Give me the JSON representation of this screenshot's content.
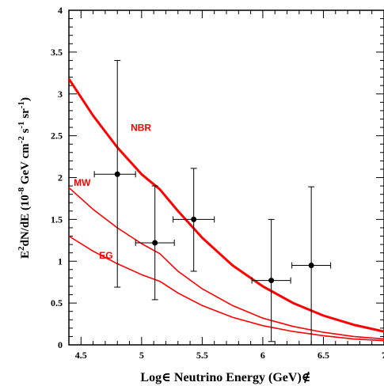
{
  "chart_data": {
    "type": "line",
    "xlabel": "Log∈ Neutrino Energy (GeV)∉",
    "ylabel": {
      "parts": [
        "E",
        "2",
        "dN/dE (10",
        "-8",
        " GeV cm",
        "-2",
        " s",
        "-1",
        " sr",
        "-1",
        ")"
      ]
    },
    "xlim": [
      4.4,
      7.0
    ],
    "ylim": [
      0,
      4
    ],
    "x_ticks": [
      "4.5",
      "5",
      "5.5",
      "6",
      "6.5",
      "7"
    ],
    "x_tick_values": [
      4.5,
      5.0,
      5.5,
      6.0,
      6.5,
      7.0
    ],
    "y_ticks": [
      "0",
      "0.5",
      "1",
      "1.5",
      "2",
      "2.5",
      "3",
      "3.5",
      "4"
    ],
    "y_tick_values": [
      0,
      0.5,
      1,
      1.5,
      2,
      2.5,
      3,
      3.5,
      4
    ],
    "grid": false,
    "series": [
      {
        "name": "NBR",
        "color": "#ff0000",
        "thick": true,
        "x": [
          4.4,
          4.6,
          4.8,
          5.0,
          5.15,
          5.3,
          5.5,
          5.75,
          6.0,
          6.25,
          6.5,
          6.75,
          7.0
        ],
        "y": [
          3.18,
          2.74,
          2.36,
          2.04,
          1.86,
          1.6,
          1.28,
          0.95,
          0.7,
          0.5,
          0.35,
          0.24,
          0.16
        ]
      },
      {
        "name": "MW",
        "color": "#ff0000",
        "thick": false,
        "x": [
          4.4,
          4.6,
          4.8,
          5.0,
          5.15,
          5.3,
          5.5,
          5.75,
          6.0,
          6.25,
          6.5,
          6.75,
          7.0
        ],
        "y": [
          1.88,
          1.62,
          1.4,
          1.21,
          1.09,
          0.88,
          0.67,
          0.47,
          0.32,
          0.22,
          0.15,
          0.1,
          0.07
        ]
      },
      {
        "name": "EG",
        "color": "#ff0000",
        "thick": false,
        "x": [
          4.4,
          4.6,
          4.8,
          5.0,
          5.15,
          5.3,
          5.5,
          5.75,
          6.0,
          6.25,
          6.5,
          6.75,
          7.0
        ],
        "y": [
          1.3,
          1.12,
          0.97,
          0.84,
          0.76,
          0.62,
          0.47,
          0.33,
          0.23,
          0.16,
          0.11,
          0.07,
          0.05
        ]
      }
    ],
    "curve_labels": [
      {
        "text": "NBR",
        "x": 4.91,
        "y": 2.56
      },
      {
        "text": "MW",
        "x": 4.44,
        "y": 1.9
      },
      {
        "text": "EG",
        "x": 4.65,
        "y": 1.03
      }
    ],
    "points": [
      {
        "x": 4.8,
        "y": 2.04,
        "xerr": [
          4.61,
          4.95
        ],
        "yerr": [
          0.69,
          3.4
        ]
      },
      {
        "x": 5.11,
        "y": 1.22,
        "xerr": [
          4.95,
          5.27
        ],
        "yerr": [
          0.54,
          1.9
        ]
      },
      {
        "x": 5.43,
        "y": 1.5,
        "xerr": [
          5.26,
          5.6
        ],
        "yerr": [
          0.88,
          2.11
        ]
      },
      {
        "x": 6.07,
        "y": 0.77,
        "xerr": [
          5.91,
          6.23
        ],
        "yerr": [
          0.04,
          1.5
        ]
      },
      {
        "x": 6.4,
        "y": 0.95,
        "xerr": [
          6.24,
          6.56
        ],
        "yerr": [
          0.0,
          1.89
        ]
      }
    ]
  }
}
